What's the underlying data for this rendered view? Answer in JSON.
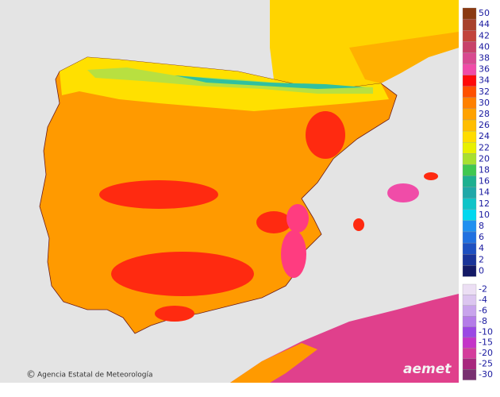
{
  "legend": {
    "positive": {
      "values": [
        50,
        44,
        42,
        40,
        38,
        36,
        34,
        32,
        30,
        28,
        26,
        24,
        22,
        20,
        18,
        16,
        14,
        12,
        10,
        8,
        6,
        4,
        2,
        0
      ],
      "colors": [
        "#8a3a12",
        "#a8402a",
        "#c2443c",
        "#c8426a",
        "#d84a90",
        "#f04ca8",
        "#ff0a0a",
        "#ff5000",
        "#ff8000",
        "#ffa200",
        "#ffbe00",
        "#ffdc00",
        "#e8f000",
        "#a8e030",
        "#40c850",
        "#1eb090",
        "#20a8a8",
        "#10c4c8",
        "#00d8f0",
        "#2090f0",
        "#2070e0",
        "#1e50c0",
        "#1a3498",
        "#141a66"
      ]
    },
    "negative": {
      "values": [
        -2,
        -4,
        -6,
        -8,
        -10,
        -15,
        -20,
        -25,
        -30
      ],
      "colors": [
        "#ecdff4",
        "#dcc6f0",
        "#c8a4ec",
        "#b47ce8",
        "#9a48e4",
        "#c434c8",
        "#d43c9c",
        "#a8287e",
        "#783070"
      ]
    }
  },
  "credit": {
    "symbol": "©",
    "text": "Agencia Estatal de Meteorología"
  },
  "logo": "aemet"
}
